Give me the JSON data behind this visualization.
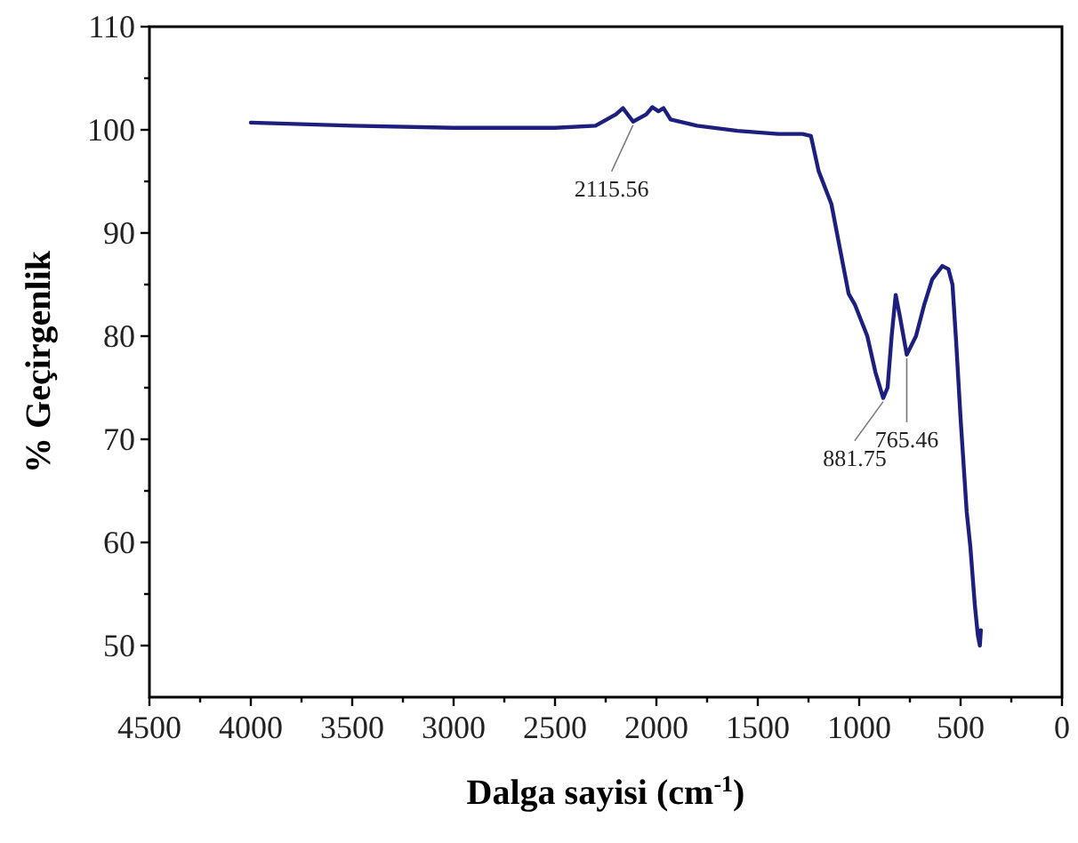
{
  "chart_data": {
    "type": "line",
    "xlabel": "Dalga sayisi (cm$^{-1}$)",
    "ylabel": "% Geçirgenlik",
    "xlim": [
      4500,
      0
    ],
    "ylim": [
      45,
      110
    ],
    "xticks": [
      4500,
      {
        "value": 4250,
        "label": null
      },
      4000,
      {
        "value": 3750,
        "label": null
      },
      3500,
      {
        "value": 3250,
        "label": null
      },
      3000,
      {
        "value": 2750,
        "label": null
      },
      2500,
      {
        "value": 2250,
        "label": null
      },
      2000,
      {
        "value": 1750,
        "label": null
      },
      1500,
      {
        "value": 1250,
        "label": null
      },
      1000,
      {
        "value": 750,
        "label": null
      },
      500,
      {
        "value": 250,
        "label": null
      },
      0
    ],
    "yticks": [
      50,
      {
        "value": 55,
        "label": null
      },
      60,
      {
        "value": 65,
        "label": null
      },
      70,
      {
        "value": 75,
        "label": null
      },
      80,
      {
        "value": 85,
        "label": null
      },
      90,
      {
        "value": 95,
        "label": null
      },
      100,
      {
        "value": 105,
        "label": null
      },
      110
    ],
    "grid": false,
    "line_style": "solid",
    "series": [
      {
        "color": "#1c1f7e",
        "x": [
          4000,
          3500,
          3000,
          2500,
          2300,
          2200,
          2165,
          2115,
          2050,
          2020,
          1990,
          1965,
          1930,
          1800,
          1600,
          1400,
          1280,
          1238,
          1200,
          1137,
          1100,
          1052,
          1020,
          960,
          920,
          881.75,
          860,
          840,
          820,
          800,
          765.46,
          720,
          680,
          640,
          590,
          560,
          540,
          522,
          500,
          470,
          452,
          430,
          415,
          405,
          400
        ],
        "values": [
          100.7,
          100.4,
          100.2,
          100.2,
          100.4,
          101.5,
          102.1,
          100.8,
          101.5,
          102.2,
          101.8,
          102.1,
          101,
          100.4,
          99.9,
          99.6,
          99.6,
          99.4,
          96,
          92.8,
          89,
          84.1,
          83,
          80,
          76.5,
          74,
          75,
          80,
          84,
          82,
          78.2,
          80,
          83,
          85.5,
          86.8,
          86.5,
          85,
          79.5,
          72,
          63,
          59.6,
          54,
          51,
          50,
          51.5
        ]
      }
    ],
    "annotations": [
      {
        "text": "2115.56",
        "x": 2115.56,
        "y": 100.8
      },
      {
        "text": "881.75",
        "x": 881.75,
        "y": 74
      },
      {
        "text": "765.46",
        "x": 765.46,
        "y": 78.2
      }
    ]
  }
}
